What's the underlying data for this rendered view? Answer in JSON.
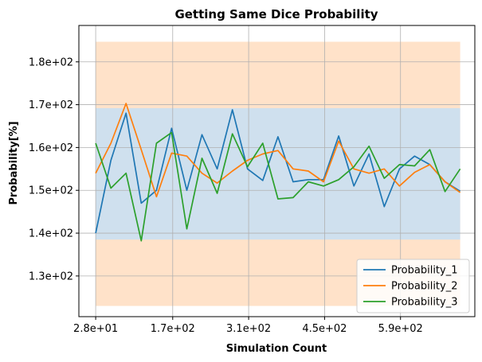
{
  "chart_data": {
    "type": "line",
    "title": "Getting Same Dice Probability",
    "xlabel": "Simulation Count",
    "ylabel": "Probability[%]",
    "xlim": [
      -3,
      727
    ],
    "ylim": [
      120.5,
      188.5
    ],
    "x_ticks": [
      {
        "value": 28,
        "label": "2.8e+01"
      },
      {
        "value": 170,
        "label": "1.7e+02"
      },
      {
        "value": 310,
        "label": "3.1e+02"
      },
      {
        "value": 450,
        "label": "4.5e+02"
      },
      {
        "value": 590,
        "label": "5.9e+02"
      }
    ],
    "y_ticks": [
      {
        "value": 130,
        "label": "1.3e+02"
      },
      {
        "value": 140,
        "label": "1.4e+02"
      },
      {
        "value": 150,
        "label": "1.5e+02"
      },
      {
        "value": 160,
        "label": "1.6e+02"
      },
      {
        "value": 170,
        "label": "1.7e+02"
      },
      {
        "value": 180,
        "label": "1.8e+02"
      }
    ],
    "grid": true,
    "legend_position": "lower-right",
    "bands": [
      {
        "lower": 123.0,
        "upper": 184.7,
        "color": "#ffe2c9"
      },
      {
        "lower": 138.5,
        "upper": 169.2,
        "color": "#cfe0ee"
      }
    ],
    "x": [
      28,
      56,
      84,
      112,
      140,
      168,
      196,
      224,
      252,
      280,
      308,
      336,
      364,
      392,
      420,
      448,
      476,
      504,
      532,
      560,
      588,
      616,
      644,
      672,
      700
    ],
    "series": [
      {
        "name": "Probability_1",
        "color": "#1f77b4",
        "values": [
          140.0,
          157.0,
          168.0,
          147.0,
          150.0,
          164.5,
          150.0,
          163.0,
          155.0,
          168.8,
          155.0,
          152.3,
          162.5,
          152.0,
          152.5,
          152.5,
          162.7,
          151.0,
          158.5,
          146.2,
          155.0,
          158.0,
          156.0,
          152.0,
          149.8
        ]
      },
      {
        "name": "Probability_2",
        "color": "#ff7f0e",
        "values": [
          154.0,
          161.0,
          170.3,
          159.5,
          148.5,
          158.7,
          158.0,
          154.0,
          151.7,
          154.5,
          157.0,
          158.5,
          159.3,
          155.0,
          154.5,
          152.0,
          161.5,
          155.0,
          154.0,
          155.0,
          151.0,
          154.2,
          156.0,
          152.0,
          149.5
        ]
      },
      {
        "name": "Probability_3",
        "color": "#2ca02c",
        "values": [
          161.0,
          150.5,
          154.0,
          138.2,
          161.0,
          163.5,
          141.0,
          157.5,
          149.3,
          163.2,
          155.5,
          161.0,
          148.0,
          148.3,
          152.0,
          151.0,
          152.5,
          155.5,
          160.3,
          152.8,
          156.0,
          155.7,
          159.5,
          149.7,
          155.0
        ]
      }
    ]
  }
}
